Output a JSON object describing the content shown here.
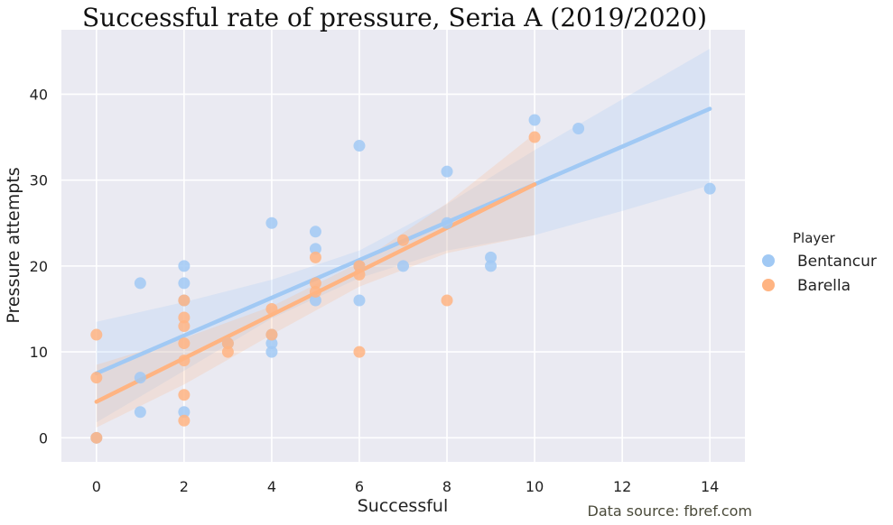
{
  "chart_data": {
    "type": "scatter",
    "title": "Successful rate of pressure, Seria A (2019/2020)",
    "xlabel": "Successful",
    "ylabel": "Pressure attempts",
    "xlim": [
      -0.8,
      14.8
    ],
    "ylim": [
      -2.8,
      47.5
    ],
    "xticks": [
      0,
      2,
      4,
      6,
      8,
      10,
      12,
      14
    ],
    "yticks": [
      0,
      10,
      20,
      30,
      40
    ],
    "grid": true,
    "legend": {
      "title": "Player",
      "placement": "right"
    },
    "source": "Data source: fbref.com",
    "series": [
      {
        "name": "Bentancur",
        "color": "#a1c9f4",
        "points": [
          [
            0,
            0
          ],
          [
            1,
            18
          ],
          [
            1,
            7
          ],
          [
            1,
            3
          ],
          [
            2,
            20
          ],
          [
            2,
            18
          ],
          [
            2,
            16
          ],
          [
            2,
            3
          ],
          [
            3,
            11
          ],
          [
            4,
            25
          ],
          [
            4,
            12
          ],
          [
            4,
            11
          ],
          [
            4,
            10
          ],
          [
            5,
            24
          ],
          [
            5,
            22
          ],
          [
            5,
            16
          ],
          [
            6,
            34
          ],
          [
            6,
            20
          ],
          [
            6,
            16
          ],
          [
            7,
            20
          ],
          [
            8,
            31
          ],
          [
            8,
            25
          ],
          [
            9,
            21
          ],
          [
            9,
            20
          ],
          [
            10,
            37
          ],
          [
            11,
            36
          ],
          [
            14,
            29
          ]
        ],
        "fit": {
          "x": [
            0,
            14
          ],
          "y": [
            7.5,
            38.3
          ]
        },
        "ci_upper": [
          [
            0,
            13.5
          ],
          [
            2,
            15.8
          ],
          [
            4,
            18.4
          ],
          [
            6,
            21.8
          ],
          [
            8,
            27.2
          ],
          [
            10,
            33.5
          ],
          [
            12,
            39.4
          ],
          [
            14,
            45.3
          ]
        ],
        "ci_lower": [
          [
            0,
            1.8
          ],
          [
            2,
            7.8
          ],
          [
            4,
            13.9
          ],
          [
            6,
            18.6
          ],
          [
            8,
            21.8
          ],
          [
            10,
            23.6
          ],
          [
            12,
            26.4
          ],
          [
            14,
            29.4
          ]
        ]
      },
      {
        "name": "Barella",
        "color": "#ffb482",
        "points": [
          [
            0,
            12
          ],
          [
            0,
            7
          ],
          [
            0,
            0
          ],
          [
            2,
            16
          ],
          [
            2,
            14
          ],
          [
            2,
            13
          ],
          [
            2,
            11
          ],
          [
            2,
            9
          ],
          [
            2,
            5
          ],
          [
            2,
            2
          ],
          [
            3,
            11
          ],
          [
            3,
            10
          ],
          [
            4,
            15
          ],
          [
            4,
            12
          ],
          [
            5,
            21
          ],
          [
            5,
            18
          ],
          [
            5,
            17
          ],
          [
            6,
            20
          ],
          [
            6,
            19
          ],
          [
            6,
            10
          ],
          [
            7,
            23
          ],
          [
            8,
            16
          ],
          [
            10,
            35
          ]
        ],
        "fit": {
          "x": [
            0,
            10
          ],
          "y": [
            4.2,
            29.5
          ]
        },
        "ci_upper": [
          [
            0,
            8.5
          ],
          [
            2,
            11.6
          ],
          [
            4,
            15.3
          ],
          [
            6,
            20.4
          ],
          [
            8,
            27.3
          ],
          [
            10,
            35.4
          ]
        ],
        "ci_lower": [
          [
            0,
            1.2
          ],
          [
            2,
            6.2
          ],
          [
            4,
            12.0
          ],
          [
            6,
            17.6
          ],
          [
            8,
            21.5
          ],
          [
            10,
            23.6
          ]
        ]
      }
    ]
  }
}
